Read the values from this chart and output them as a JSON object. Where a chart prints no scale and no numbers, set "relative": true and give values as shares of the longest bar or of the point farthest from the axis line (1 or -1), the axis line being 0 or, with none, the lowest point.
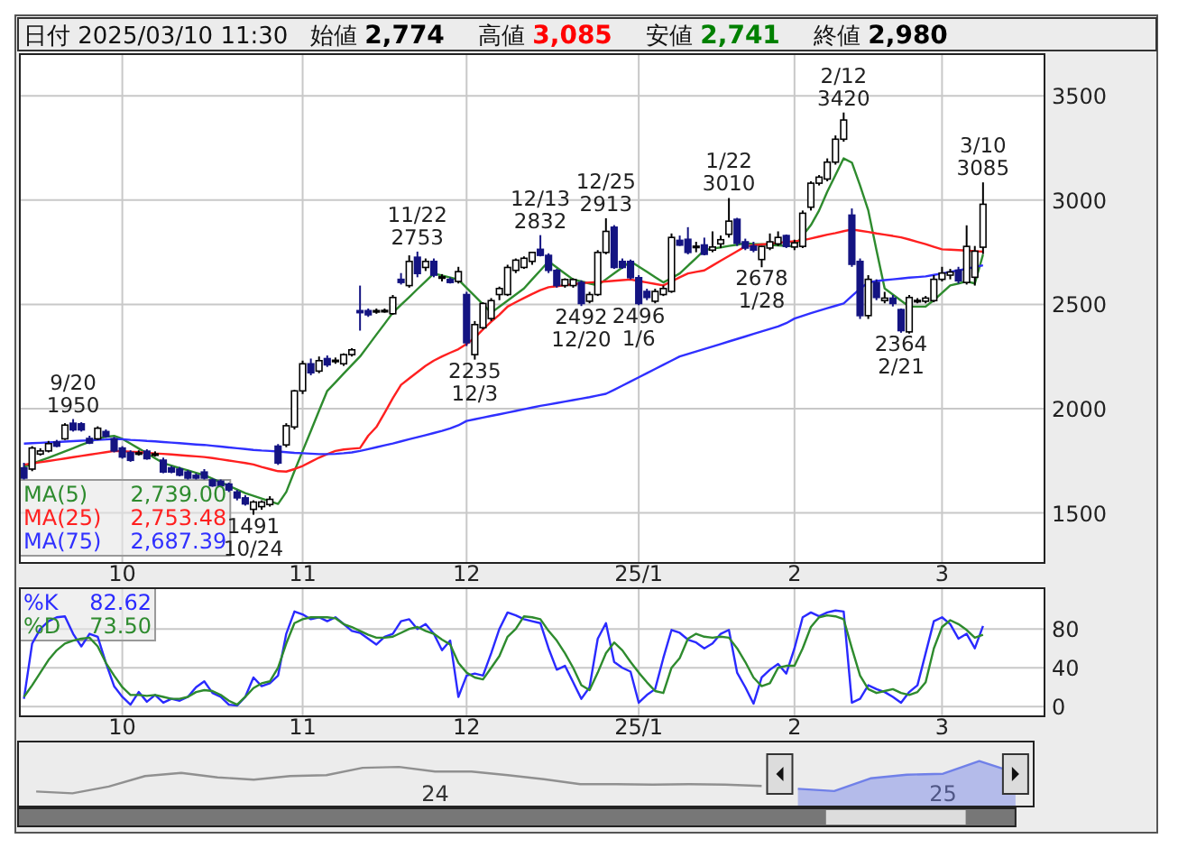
{
  "chart_data": [
    {
      "type": "other",
      "title": "日付 2025/03/10 11:30",
      "annotations": [
        "始値 2,774",
        "高値 3,085",
        "安値 2,741",
        "終値 2,980"
      ],
      "colors": [
        "#000000",
        "#ff0000",
        "#008000",
        "#000000"
      ]
    },
    {
      "type": "candlestick",
      "categories": [
        null,
        null,
        null,
        null,
        null,
        null,
        null,
        null,
        null,
        null,
        null,
        null,
        "10",
        null,
        null,
        null,
        null,
        null,
        null,
        null,
        null,
        null,
        null,
        null,
        null,
        null,
        null,
        null,
        null,
        null,
        null,
        null,
        null,
        null,
        "11",
        null,
        null,
        null,
        null,
        null,
        null,
        null,
        null,
        null,
        null,
        null,
        null,
        null,
        null,
        null,
        null,
        null,
        null,
        null,
        "12",
        null,
        null,
        null,
        null,
        null,
        null,
        null,
        null,
        null,
        null,
        null,
        null,
        null,
        null,
        null,
        null,
        null,
        null,
        null,
        null,
        "25/1",
        null,
        null,
        null,
        null,
        null,
        null,
        null,
        null,
        null,
        null,
        null,
        null,
        null,
        null,
        null,
        null,
        null,
        null,
        "2",
        null,
        null,
        null,
        null,
        null,
        null,
        null,
        null,
        null,
        null,
        null,
        null,
        null,
        null,
        null,
        null,
        null,
        "3",
        null,
        null,
        null,
        null,
        null,
        null,
        null,
        null,
        null,
        null,
        null,
        null
      ],
      "ohlc": [
        [
          1716,
          1740,
          1660,
          1667
        ],
        [
          1710,
          1820,
          1700,
          1811
        ],
        [
          1782,
          1810,
          1775,
          1797
        ],
        [
          1797,
          1845,
          1790,
          1832
        ],
        [
          1840,
          1850,
          1815,
          1820
        ],
        [
          1855,
          1930,
          1850,
          1921
        ],
        [
          1930,
          1950,
          1890,
          1898
        ],
        [
          1927,
          1935,
          1890,
          1898
        ],
        [
          1857,
          1870,
          1830,
          1835
        ],
        [
          1855,
          1915,
          1850,
          1906
        ],
        [
          1890,
          1900,
          1860,
          1867
        ],
        [
          1855,
          1865,
          1790,
          1797
        ],
        [
          1811,
          1820,
          1760,
          1768
        ],
        [
          1790,
          1800,
          1745,
          1752
        ],
        [
          1787,
          1800,
          1775,
          1788
        ],
        [
          1796,
          1805,
          1755,
          1760
        ],
        [
          1782,
          1795,
          1770,
          1783
        ],
        [
          1753,
          1765,
          1690,
          1696
        ],
        [
          1716,
          1725,
          1690,
          1696
        ],
        [
          1710,
          1720,
          1675,
          1681
        ],
        [
          1696,
          1705,
          1660,
          1667
        ],
        [
          1680,
          1690,
          1660,
          1667
        ],
        [
          1696,
          1710,
          1660,
          1667
        ],
        [
          1658,
          1665,
          1625,
          1630
        ],
        [
          1652,
          1660,
          1625,
          1630
        ],
        [
          1638,
          1645,
          1600,
          1610
        ],
        [
          1600,
          1610,
          1560,
          1572
        ],
        [
          1572,
          1585,
          1535,
          1543
        ],
        [
          1517,
          1560,
          1491,
          1552
        ],
        [
          1530,
          1560,
          1515,
          1552
        ],
        [
          1540,
          1580,
          1530,
          1565
        ],
        [
          1820,
          1830,
          1730,
          1739
        ],
        [
          1826,
          1930,
          1815,
          1918
        ],
        [
          1912,
          2090,
          1900,
          2085
        ],
        [
          2085,
          2230,
          2070,
          2215
        ],
        [
          2215,
          2240,
          2160,
          2172
        ],
        [
          2180,
          2250,
          2170,
          2230
        ],
        [
          2240,
          2255,
          2200,
          2210
        ],
        [
          2230,
          2245,
          2215,
          2232
        ],
        [
          2215,
          2265,
          2205,
          2259
        ],
        [
          2259,
          2290,
          2250,
          2282
        ],
        [
          2470,
          2590,
          2374,
          2460
        ],
        [
          2470,
          2480,
          2440,
          2450
        ],
        [
          2468,
          2480,
          2455,
          2470
        ],
        [
          2470,
          2480,
          2460,
          2471
        ],
        [
          2455,
          2545,
          2450,
          2533
        ],
        [
          2620,
          2650,
          2595,
          2605
        ],
        [
          2590,
          2735,
          2580,
          2706
        ],
        [
          2726,
          2753,
          2630,
          2648
        ],
        [
          2677,
          2720,
          2660,
          2706
        ],
        [
          2706,
          2720,
          2630,
          2640
        ],
        [
          2630,
          2645,
          2610,
          2632
        ],
        [
          2620,
          2630,
          2600,
          2605
        ],
        [
          2610,
          2680,
          2600,
          2657
        ],
        [
          2547,
          2560,
          2300,
          2316
        ],
        [
          2259,
          2420,
          2235,
          2403
        ],
        [
          2388,
          2510,
          2380,
          2504
        ],
        [
          2432,
          2530,
          2420,
          2518
        ],
        [
          2547,
          2585,
          2520,
          2576
        ],
        [
          2547,
          2690,
          2540,
          2677
        ],
        [
          2663,
          2720,
          2650,
          2712
        ],
        [
          2677,
          2730,
          2670,
          2721
        ],
        [
          2706,
          2750,
          2690,
          2749
        ],
        [
          2764,
          2832,
          2730,
          2735
        ],
        [
          2735,
          2745,
          2650,
          2663
        ],
        [
          2663,
          2670,
          2580,
          2590
        ],
        [
          2590,
          2625,
          2580,
          2619
        ],
        [
          2590,
          2625,
          2580,
          2619
        ],
        [
          2605,
          2615,
          2492,
          2504
        ],
        [
          2515,
          2560,
          2505,
          2547
        ],
        [
          2547,
          2760,
          2540,
          2749
        ],
        [
          2749,
          2913,
          2740,
          2850
        ],
        [
          2870,
          2880,
          2670,
          2677
        ],
        [
          2706,
          2720,
          2670,
          2677
        ],
        [
          2706,
          2715,
          2620,
          2628
        ],
        [
          2628,
          2640,
          2496,
          2504
        ],
        [
          2562,
          2575,
          2520,
          2533
        ],
        [
          2515,
          2575,
          2505,
          2562
        ],
        [
          2547,
          2590,
          2540,
          2576
        ],
        [
          2562,
          2840,
          2555,
          2821
        ],
        [
          2807,
          2830,
          2780,
          2784
        ],
        [
          2812,
          2870,
          2740,
          2749
        ],
        [
          2778,
          2800,
          2750,
          2779
        ],
        [
          2785,
          2820,
          2735,
          2740
        ],
        [
          2760,
          2850,
          2750,
          2775
        ],
        [
          2790,
          2830,
          2770,
          2810
        ],
        [
          2836,
          3010,
          2820,
          2899
        ],
        [
          2908,
          2915,
          2780,
          2793
        ],
        [
          2800,
          2815,
          2760,
          2770
        ],
        [
          2780,
          2800,
          2750,
          2760
        ],
        [
          2715,
          2780,
          2678,
          2778
        ],
        [
          2770,
          2840,
          2760,
          2800
        ],
        [
          2790,
          2850,
          2780,
          2821
        ],
        [
          2830,
          2835,
          2770,
          2778
        ],
        [
          2775,
          2810,
          2760,
          2795
        ],
        [
          2778,
          2950,
          2770,
          2937
        ],
        [
          2966,
          3090,
          2950,
          3081
        ],
        [
          3081,
          3120,
          3070,
          3110
        ],
        [
          3101,
          3200,
          3090,
          3182
        ],
        [
          3182,
          3310,
          3170,
          3292
        ],
        [
          3292,
          3420,
          3280,
          3384
        ],
        [
          2928,
          2960,
          2680,
          2692
        ],
        [
          2706,
          2720,
          2430,
          2446
        ],
        [
          2446,
          2640,
          2430,
          2620
        ],
        [
          2605,
          2620,
          2520,
          2533
        ],
        [
          2518,
          2560,
          2505,
          2530
        ],
        [
          2530,
          2545,
          2490,
          2504
        ],
        [
          2475,
          2480,
          2364,
          2374
        ],
        [
          2368,
          2545,
          2360,
          2533
        ],
        [
          2518,
          2530,
          2505,
          2519
        ],
        [
          2515,
          2540,
          2505,
          2530
        ],
        [
          2518,
          2640,
          2510,
          2620
        ],
        [
          2620,
          2680,
          2610,
          2650
        ],
        [
          2640,
          2670,
          2620,
          2655
        ],
        [
          2664,
          2680,
          2600,
          2613
        ],
        [
          2605,
          2879,
          2595,
          2778
        ],
        [
          2630,
          2780,
          2590,
          2755
        ],
        [
          2774,
          3085,
          2741,
          2980
        ],
        null,
        null,
        null,
        null,
        null,
        null,
        null
      ],
      "colors": [
        "#141482",
        "#ffffff",
        "#ffffff",
        "#ffffff",
        "#141482",
        "#ffffff",
        "#141482",
        "#141482",
        "#141482",
        "#ffffff",
        "#141482",
        "#141482",
        "#141482",
        "#141482",
        "#ffffff",
        "#141482",
        "#ffffff",
        "#141482",
        "#141482",
        "#141482",
        "#141482",
        "#141482",
        "#141482",
        "#141482",
        "#141482",
        "#141482",
        "#141482",
        "#141482",
        "#ffffff",
        "#ffffff",
        "#ffffff",
        "#141482",
        "#ffffff",
        "#ffffff",
        "#ffffff",
        "#141482",
        "#ffffff",
        "#141482",
        "#ffffff",
        "#ffffff",
        "#ffffff",
        "#141482",
        "#141482",
        "#ffffff",
        "#ffffff",
        "#ffffff",
        "#141482",
        "#ffffff",
        "#141482",
        "#ffffff",
        "#141482",
        "#ffffff",
        "#141482",
        "#ffffff",
        "#141482",
        "#ffffff",
        "#ffffff",
        "#ffffff",
        "#ffffff",
        "#ffffff",
        "#ffffff",
        "#ffffff",
        "#ffffff",
        "#141482",
        "#141482",
        "#141482",
        "#ffffff",
        "#ffffff",
        "#141482",
        "#ffffff",
        "#ffffff",
        "#ffffff",
        "#141482",
        "#141482",
        "#141482",
        "#141482",
        "#141482",
        "#ffffff",
        "#ffffff",
        "#ffffff",
        "#141482",
        "#141482",
        "#ffffff",
        "#141482",
        "#ffffff",
        "#ffffff",
        "#ffffff",
        "#141482",
        "#141482",
        "#141482",
        "#ffffff",
        "#ffffff",
        "#ffffff",
        "#141482",
        "#ffffff",
        "#ffffff",
        "#ffffff",
        "#ffffff",
        "#ffffff",
        "#ffffff",
        "#ffffff",
        "#141482",
        "#141482",
        "#ffffff",
        "#141482",
        "#ffffff",
        "#141482",
        "#141482",
        "#ffffff",
        "#ffffff",
        "#ffffff",
        "#ffffff",
        "#ffffff",
        "#ffffff",
        "#141482",
        "#ffffff",
        "#ffffff",
        "#ffffff",
        null,
        null,
        null,
        null,
        null,
        null,
        null
      ],
      "series": [
        {
          "name": "MA(5)",
          "type": "line",
          "color": "#2e8b2e",
          "values": [
            1720,
            1735,
            1750,
            1765,
            1780,
            1795,
            1810,
            1826,
            1840,
            1855,
            1865,
            1869,
            1855,
            1832,
            1809,
            1786,
            1762,
            1739,
            1727,
            1715,
            1704,
            1692,
            1681,
            1664,
            1647,
            1630,
            1612,
            1595,
            1582,
            1569,
            1556,
            1543,
            1600,
            1700,
            1797,
            1893,
            1990,
            2085,
            2126,
            2168,
            2209,
            2250,
            2302,
            2355,
            2407,
            2460,
            2498,
            2535,
            2573,
            2610,
            2648,
            2638,
            2629,
            2619,
            2579,
            2540,
            2500,
            2460,
            2489,
            2518,
            2547,
            2576,
            2620,
            2663,
            2706,
            2677,
            2648,
            2619,
            2610,
            2600,
            2591,
            2620,
            2649,
            2677,
            2706,
            2681,
            2656,
            2630,
            2605,
            2626,
            2648,
            2685,
            2722,
            2760,
            2767,
            2773,
            2780,
            2786,
            2793,
            2790,
            2788,
            2785,
            2783,
            2780,
            2778,
            2830,
            2880,
            2950,
            3040,
            3120,
            3200,
            3180,
            3070,
            2951,
            2760,
            2576,
            2547,
            2518,
            2489,
            2489,
            2489,
            2520,
            2555,
            2591,
            2600,
            2610,
            2600,
            2739,
            null,
            null,
            null,
            null,
            null,
            null,
            null
          ]
        },
        {
          "name": "MA(25)",
          "type": "line",
          "color": "#ff2020",
          "values": [
            1731,
            1737,
            1743,
            1749,
            1755,
            1761,
            1767,
            1773,
            1779,
            1785,
            1791,
            1797,
            1796,
            1793,
            1791,
            1788,
            1785,
            1783,
            1780,
            1777,
            1774,
            1771,
            1768,
            1763,
            1757,
            1751,
            1745,
            1739,
            1732,
            1720,
            1710,
            1700,
            1698,
            1710,
            1725,
            1745,
            1765,
            1782,
            1797,
            1804,
            1808,
            1811,
            1870,
            1912,
            1980,
            2050,
            2114,
            2145,
            2175,
            2205,
            2230,
            2250,
            2268,
            2285,
            2310,
            2340,
            2380,
            2417,
            2450,
            2489,
            2510,
            2530,
            2550,
            2568,
            2582,
            2587,
            2592,
            2597,
            2601,
            2605,
            2607,
            2610,
            2613,
            2616,
            2619,
            2612,
            2605,
            2598,
            2591,
            2610,
            2630,
            2648,
            2656,
            2663,
            2686,
            2709,
            2732,
            2755,
            2778,
            2783,
            2787,
            2791,
            2795,
            2799,
            2803,
            2807,
            2816,
            2825,
            2834,
            2842,
            2851,
            2859,
            2853,
            2847,
            2840,
            2834,
            2828,
            2821,
            2811,
            2800,
            2789,
            2776,
            2764,
            2762,
            2760,
            2758,
            2755,
            2753,
            null,
            null,
            null,
            null,
            null,
            null,
            null
          ]
        },
        {
          "name": "MA(75)",
          "type": "line",
          "color": "#3030ff",
          "values": [
            1832,
            1834,
            1836,
            1838,
            1840,
            1842,
            1844,
            1846,
            1848,
            1850,
            1852,
            1855,
            1853,
            1850,
            1848,
            1845,
            1843,
            1840,
            1837,
            1834,
            1831,
            1828,
            1826,
            1822,
            1818,
            1814,
            1810,
            1806,
            1802,
            1799,
            1797,
            1794,
            1791,
            1788,
            1786,
            1784,
            1782,
            1782,
            1783,
            1786,
            1790,
            1797,
            1806,
            1815,
            1824,
            1833,
            1843,
            1853,
            1863,
            1873,
            1883,
            1893,
            1905,
            1920,
            1941,
            1949,
            1957,
            1965,
            1973,
            1981,
            1989,
            1997,
            2005,
            2013,
            2020,
            2027,
            2034,
            2041,
            2048,
            2055,
            2063,
            2071,
            2090,
            2110,
            2130,
            2150,
            2170,
            2190,
            2210,
            2230,
            2250,
            2262,
            2274,
            2286,
            2298,
            2310,
            2322,
            2334,
            2346,
            2358,
            2370,
            2382,
            2394,
            2410,
            2432,
            2445,
            2458,
            2470,
            2482,
            2493,
            2504,
            2540,
            2575,
            2605,
            2612,
            2616,
            2620,
            2624,
            2628,
            2631,
            2634,
            2641,
            2648,
            2656,
            2663,
            2671,
            2679,
            2687,
            null,
            null,
            null,
            null,
            null,
            null,
            null
          ]
        }
      ],
      "ylim": [
        1260,
        3700
      ],
      "yticks": [
        1500,
        2000,
        2500,
        3000,
        3500
      ],
      "grid": true,
      "legend": "bottom left",
      "annotations": [
        {
          "text": "9/20\n1950",
          "y": 1950
        },
        {
          "text": "1491\n10/24",
          "y": 1491
        },
        {
          "text": "11/22\n2753",
          "y": 2753
        },
        {
          "text": "2235\n12/3",
          "y": 2235
        },
        {
          "text": "12/13\n2832",
          "y": 2832
        },
        {
          "text": "2492\n12/20",
          "y": 2492
        },
        {
          "text": "12/25\n2913",
          "y": 2913
        },
        {
          "text": "2496\n1/6",
          "y": 2496
        },
        {
          "text": "1/22\n3010",
          "y": 3010
        },
        {
          "text": "2678\n1/28",
          "y": 2678
        },
        {
          "text": "2/12\n3420",
          "y": 3420
        },
        {
          "text": "2364\n2/21",
          "y": 2364
        },
        {
          "text": "3/10\n3085",
          "y": 3085
        },
        "2,739.00",
        "2,753.48",
        "2,687.39"
      ]
    },
    {
      "type": "line",
      "categories": [
        null,
        null,
        null,
        null,
        null,
        null,
        null,
        null,
        null,
        null,
        null,
        null,
        "10",
        null,
        null,
        null,
        null,
        null,
        null,
        null,
        null,
        null,
        null,
        null,
        null,
        null,
        null,
        null,
        null,
        null,
        null,
        null,
        null,
        null,
        "11",
        null,
        null,
        null,
        null,
        null,
        null,
        null,
        null,
        null,
        null,
        null,
        null,
        null,
        null,
        null,
        null,
        null,
        null,
        null,
        "12",
        null,
        null,
        null,
        null,
        null,
        null,
        null,
        null,
        null,
        null,
        null,
        null,
        null,
        null,
        null,
        null,
        null,
        null,
        null,
        null,
        "25/1",
        null,
        null,
        null,
        null,
        null,
        null,
        null,
        null,
        null,
        null,
        null,
        null,
        null,
        null,
        null,
        null,
        null,
        null,
        "2",
        null,
        null,
        null,
        null,
        null,
        null,
        null,
        null,
        null,
        null,
        null,
        null,
        null,
        null,
        null,
        null,
        null,
        "3",
        null,
        null,
        null,
        null,
        null,
        null,
        null,
        null,
        null,
        null,
        null,
        null
      ],
      "series": [
        {
          "name": "%K",
          "color": "#2a2aff",
          "values": [
            8,
            65,
            80,
            88,
            92,
            93,
            75,
            62,
            75,
            72,
            45,
            21,
            10,
            2,
            15,
            5,
            12,
            4,
            8,
            6,
            10,
            20,
            26,
            14,
            10,
            2,
            1,
            10,
            30,
            21,
            24,
            32,
            75,
            98,
            95,
            90,
            92,
            88,
            92,
            85,
            78,
            76,
            70,
            64,
            72,
            75,
            88,
            90,
            80,
            85,
            75,
            58,
            68,
            10,
            32,
            34,
            32,
            55,
            80,
            97,
            94,
            90,
            88,
            86,
            60,
            38,
            42,
            25,
            8,
            20,
            70,
            86,
            46,
            40,
            36,
            4,
            12,
            18,
            50,
            79,
            76,
            69,
            66,
            60,
            65,
            75,
            79,
            35,
            20,
            3,
            30,
            38,
            44,
            34,
            60,
            92,
            97,
            93,
            97,
            99,
            98,
            4,
            8,
            22,
            18,
            15,
            10,
            4,
            15,
            22,
            55,
            88,
            92,
            85,
            70,
            75,
            60,
            83,
            null,
            null,
            null,
            null,
            null,
            null,
            null
          ]
        },
        {
          "name": "%D",
          "color": "#2e8b2e",
          "values": [
            10,
            22,
            35,
            48,
            58,
            65,
            68,
            70,
            71,
            62,
            45,
            32,
            20,
            12,
            12,
            11,
            12,
            10,
            8,
            8,
            10,
            15,
            17,
            16,
            12,
            6,
            2,
            10,
            19,
            24,
            26,
            40,
            65,
            86,
            90,
            92,
            92,
            92,
            91,
            85,
            82,
            78,
            74,
            71,
            71,
            72,
            76,
            80,
            82,
            78,
            75,
            69,
            64,
            45,
            35,
            30,
            28,
            40,
            52,
            72,
            80,
            93,
            92,
            90,
            78,
            68,
            55,
            40,
            22,
            17,
            35,
            55,
            66,
            58,
            46,
            35,
            25,
            16,
            14,
            40,
            50,
            70,
            75,
            72,
            71,
            72,
            71,
            60,
            46,
            30,
            21,
            24,
            40,
            42,
            42,
            60,
            82,
            92,
            94,
            93,
            90,
            60,
            32,
            18,
            14,
            16,
            18,
            14,
            12,
            15,
            25,
            60,
            82,
            89,
            85,
            79,
            71,
            74,
            null,
            null,
            null,
            null,
            null,
            null,
            null
          ]
        }
      ],
      "ylim": [
        -10,
        122
      ],
      "yticks": [
        0,
        40,
        80
      ],
      "grid": true,
      "legend": "top left",
      "annotations": [
        "82.62",
        "73.50"
      ]
    },
    {
      "type": "line",
      "relative": true,
      "categories": [
        null,
        null,
        null,
        null,
        null,
        null,
        null,
        null,
        null,
        null,
        null,
        "24",
        null,
        null,
        null,
        null,
        null,
        null,
        null,
        null,
        null,
        null,
        null,
        null,
        null,
        "25",
        null,
        null
      ],
      "series": [
        {
          "type": "line",
          "color": "#909090",
          "values": [
            0.33,
            0.29,
            0.44,
            0.67,
            0.74,
            0.64,
            0.59,
            0.67,
            0.69,
            0.85,
            0.87,
            0.77,
            0.77,
            0.69,
            0.6,
            0.49,
            0.49,
            0.48,
            0.49,
            0.48,
            0.45,
            null,
            null,
            null,
            null,
            null,
            null,
            null
          ]
        },
        {
          "type": "area",
          "color": "#7080e8",
          "values": [
            null,
            null,
            null,
            null,
            null,
            null,
            null,
            null,
            null,
            null,
            null,
            null,
            null,
            null,
            null,
            null,
            null,
            null,
            null,
            null,
            null,
            0.39,
            0.34,
            0.62,
            0.7,
            0.72,
            1,
            0.74
          ]
        }
      ]
    }
  ]
}
